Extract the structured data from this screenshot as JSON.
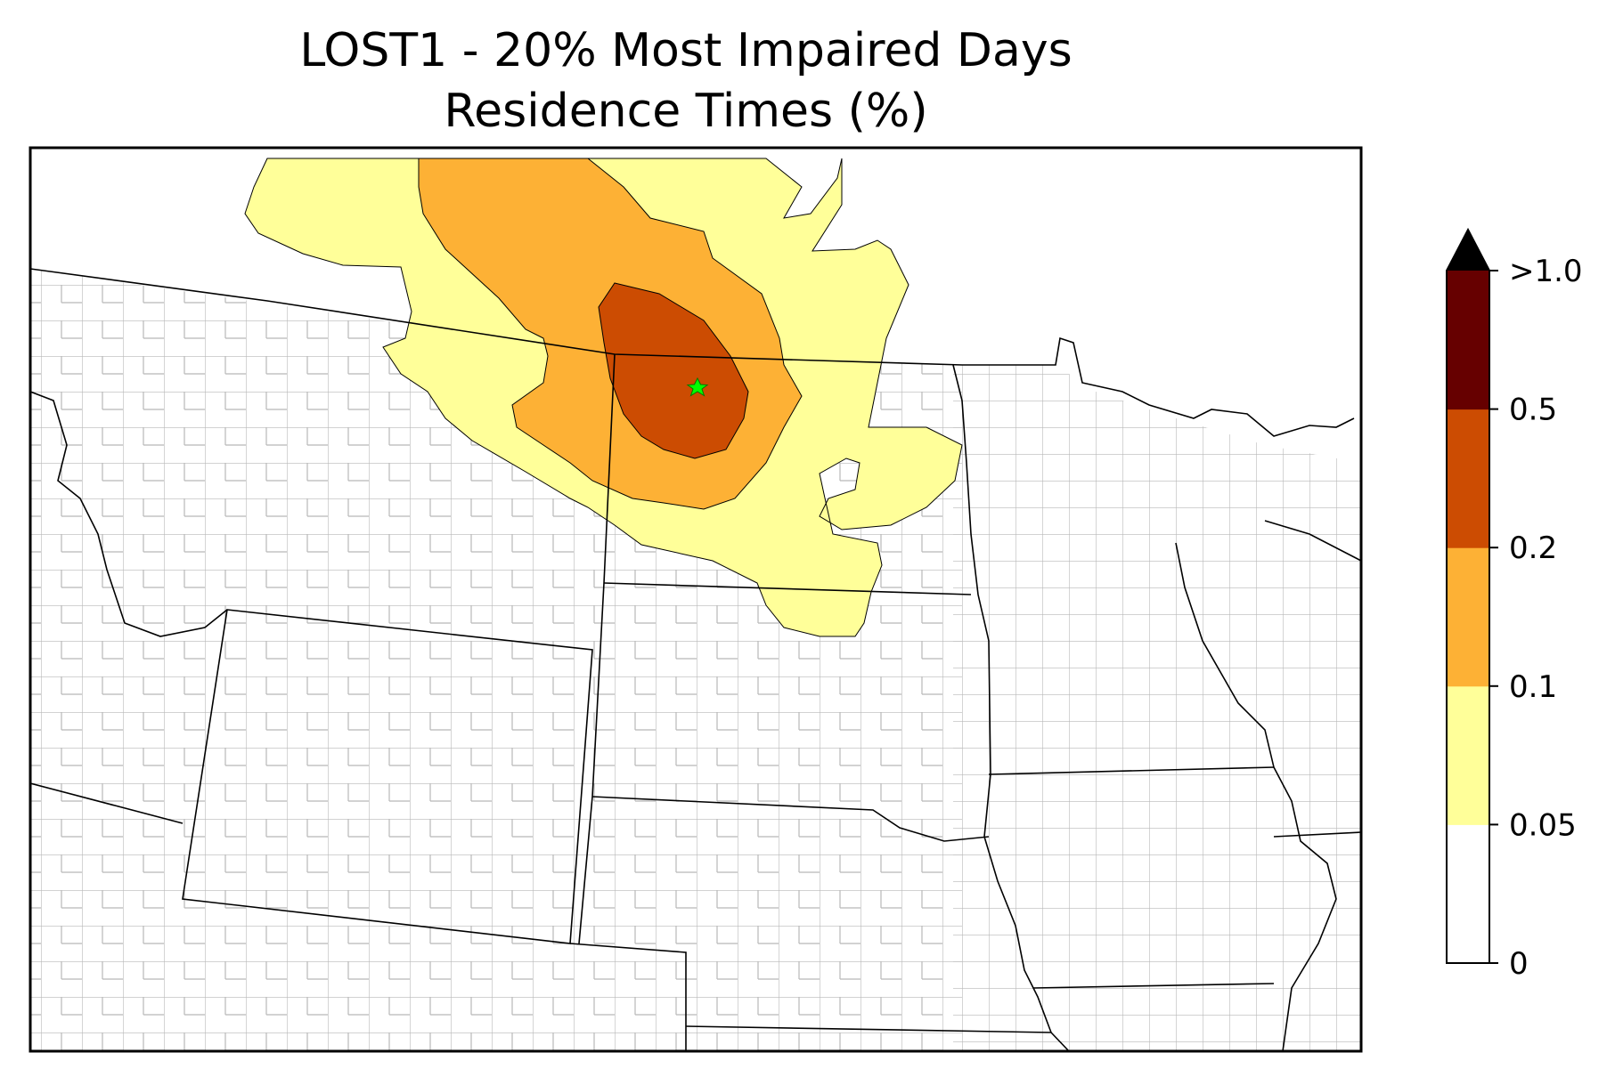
{
  "title": {
    "line1": "LOST1 - 20% Most Impaired Days",
    "line2": "Residence Times (%)"
  },
  "map": {
    "site_marker": "green-star-icon",
    "site_color": "#00ff00",
    "border_color": "#000000",
    "county_color": "#a8a8a8"
  },
  "colorbar": {
    "extend": "max",
    "bins": [
      {
        "from": 0,
        "to": 0.05,
        "color": "#ffffff"
      },
      {
        "from": 0.05,
        "to": 0.1,
        "color": "#ffff99"
      },
      {
        "from": 0.1,
        "to": 0.2,
        "color": "#fdb135"
      },
      {
        "from": 0.2,
        "to": 0.5,
        "color": "#cc4c02"
      },
      {
        "from": 0.5,
        "to": 1.0,
        "color": "#660000"
      },
      {
        "from": 1.0,
        "to": null,
        "color": "#000000"
      }
    ],
    "tick_labels": [
      "0",
      "0.05",
      "0.1",
      "0.2",
      "0.5",
      ">1.0"
    ]
  }
}
